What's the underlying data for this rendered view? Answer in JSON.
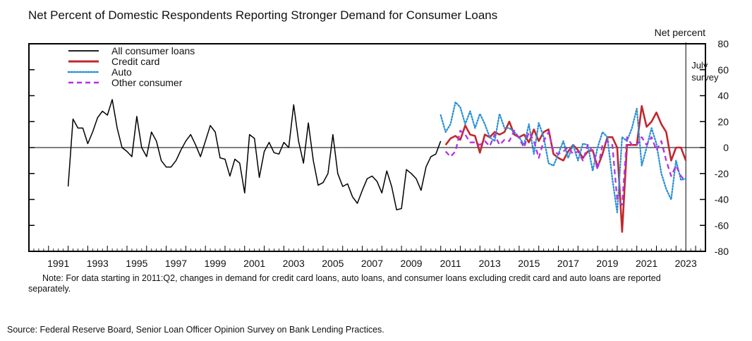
{
  "title": "Net Percent of Domestic Respondents Reporting Stronger Demand for Consumer Loans",
  "note": "Note: For data starting in 2011:Q2, changes in demand for credit card loans, auto loans, and consumer loans excluding credit card and auto loans are reported separately.",
  "source": "Source:  Federal Reserve Board, Senior Loan Officer Opinion Survey on Bank Lending Practices.",
  "colors": {
    "all_consumer": "#000000",
    "credit_card": "#c0282d",
    "auto": "#2a8fd6",
    "other_consumer": "#b431e6"
  },
  "chart_data": {
    "type": "line",
    "title": "Net Percent of Domestic Respondents Reporting Stronger Demand for Consumer Loans",
    "ylabel": "Net percent",
    "ylim": [
      -80,
      80
    ],
    "xlim": [
      1990.0,
      2024.5
    ],
    "y_ticks": [
      "80",
      "60",
      "40",
      "20",
      "0",
      "-20",
      "-40",
      "-60",
      "-80"
    ],
    "y_tick_values": [
      80,
      60,
      40,
      20,
      0,
      -20,
      -40,
      -60,
      -80
    ],
    "x_ticks": [
      "1991",
      "1993",
      "1995",
      "1997",
      "1999",
      "2001",
      "2003",
      "2005",
      "2007",
      "2009",
      "2011",
      "2013",
      "2015",
      "2017",
      "2019",
      "2021",
      "2023"
    ],
    "x_tick_values": [
      1991,
      1993,
      1995,
      1997,
      1999,
      2001,
      2003,
      2005,
      2007,
      2009,
      2011,
      2013,
      2015,
      2017,
      2019,
      2021,
      2023
    ],
    "legend_position": "top-left",
    "annotation": "July survey",
    "annotation_date": 2023.5,
    "zero_line": true,
    "series": [
      {
        "name": "All consumer loans",
        "style": "solid",
        "x": [
          1992.0,
          1992.25,
          1992.5,
          1992.75,
          1993.0,
          1993.25,
          1993.5,
          1993.75,
          1994.0,
          1994.25,
          1994.5,
          1994.75,
          1995.0,
          1995.25,
          1995.5,
          1995.75,
          1996.0,
          1996.25,
          1996.5,
          1996.75,
          1997.0,
          1997.25,
          1997.5,
          1997.75,
          1998.0,
          1998.25,
          1998.5,
          1998.75,
          1999.0,
          1999.25,
          1999.5,
          1999.75,
          2000.0,
          2000.25,
          2000.5,
          2000.75,
          2001.0,
          2001.25,
          2001.5,
          2001.75,
          2002.0,
          2002.25,
          2002.5,
          2002.75,
          2003.0,
          2003.25,
          2003.5,
          2003.75,
          2004.0,
          2004.25,
          2004.5,
          2004.75,
          2005.0,
          2005.25,
          2005.5,
          2005.75,
          2006.0,
          2006.25,
          2006.5,
          2006.75,
          2007.0,
          2007.25,
          2007.5,
          2007.75,
          2008.0,
          2008.25,
          2008.5,
          2008.75,
          2009.0,
          2009.25,
          2009.5,
          2009.75,
          2010.0,
          2010.25,
          2010.5,
          2010.75,
          2011.0
        ],
        "values": [
          -30,
          22,
          15,
          15,
          3,
          12,
          23,
          28,
          25,
          37,
          15,
          0,
          -3,
          -7,
          24,
          0,
          -7,
          12,
          5,
          -10,
          -15,
          -15,
          -10,
          -2,
          5,
          10,
          2,
          -7,
          5,
          17,
          12,
          -8,
          -9,
          -22,
          -9,
          -12,
          -35,
          10,
          7,
          -23,
          -3,
          4,
          -4,
          -5,
          4,
          0,
          33,
          5,
          -12,
          19,
          -10,
          -29,
          -27,
          -20,
          10,
          -20,
          -30,
          -28,
          -38,
          -43,
          -33,
          -24,
          -22,
          -26,
          -35,
          -18,
          -30,
          -48,
          -47,
          -17,
          -20,
          -24,
          -33,
          -15,
          -7,
          -5,
          5
        ]
      },
      {
        "name": "Credit card",
        "style": "solid",
        "x": [
          2011.25,
          2011.5,
          2011.75,
          2012.0,
          2012.25,
          2012.5,
          2012.75,
          2013.0,
          2013.25,
          2013.5,
          2013.75,
          2014.0,
          2014.25,
          2014.5,
          2014.75,
          2015.0,
          2015.25,
          2015.5,
          2015.75,
          2016.0,
          2016.25,
          2016.5,
          2016.75,
          2017.0,
          2017.25,
          2017.5,
          2017.75,
          2018.0,
          2018.25,
          2018.5,
          2018.75,
          2019.0,
          2019.25,
          2019.5,
          2019.75,
          2020.0,
          2020.25,
          2020.5,
          2020.75,
          2021.0,
          2021.25,
          2021.5,
          2021.75,
          2022.0,
          2022.25,
          2022.5,
          2022.75,
          2023.0,
          2023.25,
          2023.5
        ],
        "values": [
          2,
          7,
          9,
          6,
          17,
          10,
          9,
          -4,
          10,
          8,
          12,
          10,
          12,
          20,
          10,
          8,
          10,
          4,
          14,
          5,
          12,
          14,
          -5,
          -8,
          -10,
          -3,
          2,
          -2,
          -8,
          -3,
          -2,
          -15,
          -5,
          8,
          8,
          0,
          -65,
          2,
          2,
          2,
          32,
          16,
          20,
          27,
          18,
          12,
          -10,
          0,
          0,
          -10
        ]
      },
      {
        "name": "Auto",
        "style": "dotted",
        "x": [
          2011.0,
          2011.25,
          2011.5,
          2011.75,
          2012.0,
          2012.25,
          2012.5,
          2012.75,
          2013.0,
          2013.25,
          2013.5,
          2013.75,
          2014.0,
          2014.25,
          2014.5,
          2014.75,
          2015.0,
          2015.25,
          2015.5,
          2015.75,
          2016.0,
          2016.25,
          2016.5,
          2016.75,
          2017.0,
          2017.25,
          2017.5,
          2017.75,
          2018.0,
          2018.25,
          2018.5,
          2018.75,
          2019.0,
          2019.25,
          2019.5,
          2019.75,
          2020.0,
          2020.25,
          2020.5,
          2020.75,
          2021.0,
          2021.25,
          2021.5,
          2021.75,
          2022.0,
          2022.25,
          2022.5,
          2022.75,
          2023.0,
          2023.25,
          2023.5
        ],
        "values": [
          25,
          12,
          18,
          35,
          31,
          18,
          28,
          15,
          26,
          18,
          8,
          5,
          26,
          15,
          15,
          12,
          8,
          2,
          18,
          -5,
          19,
          8,
          -12,
          -14,
          -5,
          5,
          -8,
          2,
          -10,
          3,
          2,
          -18,
          0,
          12,
          8,
          -24,
          -50,
          8,
          5,
          15,
          30,
          -14,
          0,
          15,
          3,
          -20,
          -32,
          -40,
          -10,
          -25,
          -24
        ]
      },
      {
        "name": "Other consumer",
        "style": "dashed",
        "x": [
          2011.25,
          2011.5,
          2011.75,
          2012.0,
          2012.25,
          2012.5,
          2012.75,
          2013.0,
          2013.25,
          2013.5,
          2013.75,
          2014.0,
          2014.25,
          2014.5,
          2014.75,
          2015.0,
          2015.25,
          2015.5,
          2015.75,
          2016.0,
          2016.25,
          2016.5,
          2016.75,
          2017.0,
          2017.25,
          2017.5,
          2017.75,
          2018.0,
          2018.25,
          2018.5,
          2018.75,
          2019.0,
          2019.25,
          2019.5,
          2019.75,
          2020.0,
          2020.25,
          2020.5,
          2020.75,
          2021.0,
          2021.25,
          2021.5,
          2021.75,
          2022.0,
          2022.25,
          2022.5,
          2022.75,
          2023.0,
          2023.25,
          2023.5
        ],
        "values": [
          -3,
          -7,
          -3,
          13,
          10,
          4,
          4,
          2,
          5,
          1,
          10,
          2,
          6,
          5,
          13,
          7,
          0,
          12,
          5,
          -8,
          5,
          12,
          -3,
          -5,
          -3,
          0,
          -5,
          -3,
          -10,
          2,
          -3,
          -17,
          2,
          5,
          2,
          -40,
          -44,
          8,
          2,
          2,
          8,
          2,
          8,
          -2,
          5,
          -10,
          -22,
          -14,
          -22,
          -26
        ]
      }
    ]
  }
}
